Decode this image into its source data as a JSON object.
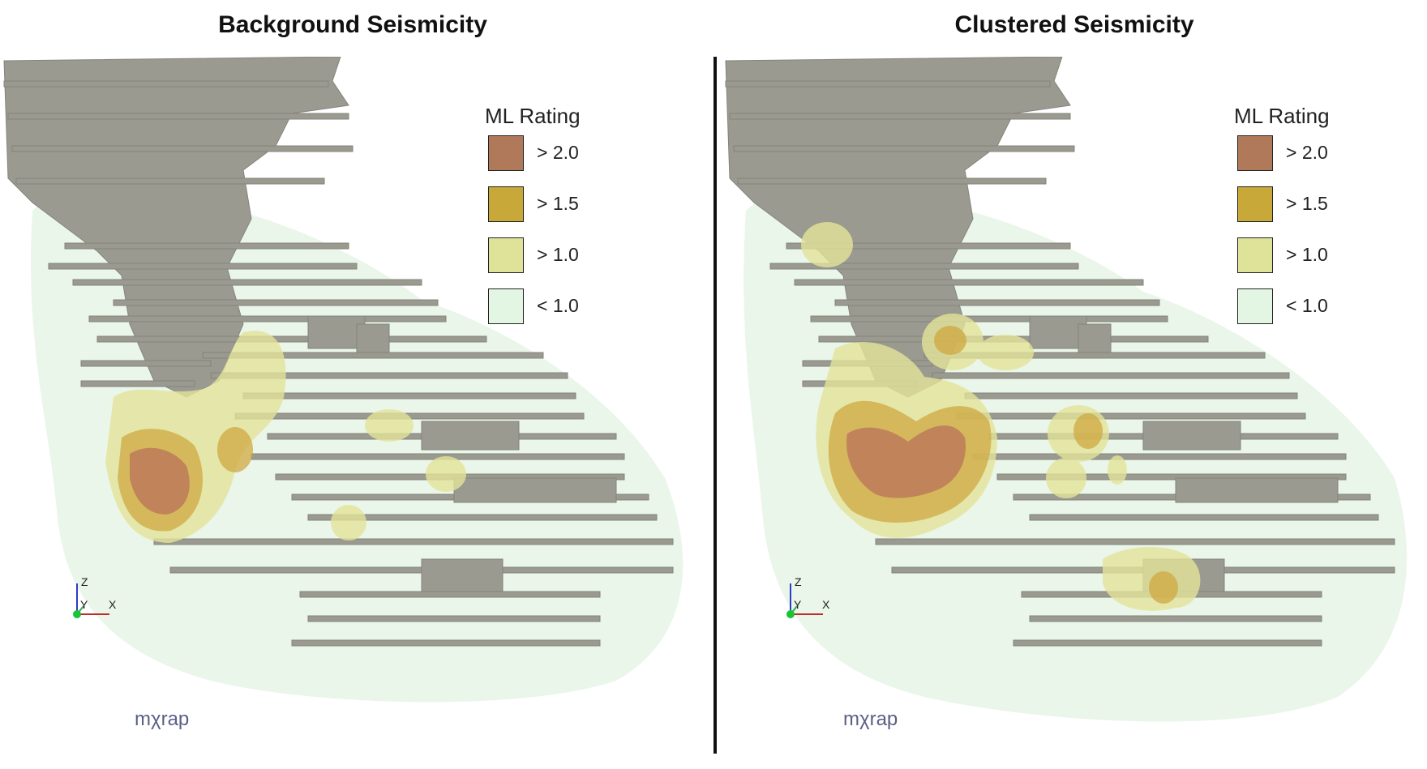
{
  "panels": [
    {
      "title": "Background Seismicity",
      "watermark": "mχrap"
    },
    {
      "title": "Clustered Seismicity",
      "watermark": "mχrap"
    }
  ],
  "legend": {
    "title": "ML Rating",
    "items": [
      {
        "label": "> 2.0",
        "color": "#b07a5a"
      },
      {
        "label": "> 1.5",
        "color": "#c8a838"
      },
      {
        "label": "> 1.0",
        "color": "#dfe39a"
      },
      {
        "label": "< 1.0",
        "color": "#e3f5e3"
      }
    ]
  },
  "axes": {
    "z": "Z",
    "y": "Y",
    "x": "X"
  },
  "colors": {
    "drives": "#9a9a90",
    "low": "#e6f5e6",
    "med": "#e4e49a",
    "high": "#cfa840",
    "top": "#b9735a"
  }
}
